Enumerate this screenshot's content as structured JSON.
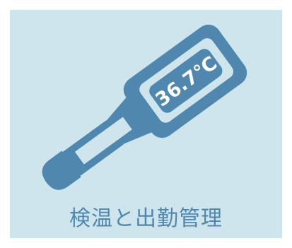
{
  "thermometer": {
    "reading": "36.7℃",
    "icon": "thermometer-icon"
  },
  "caption": {
    "title": "検温と出勤管理"
  },
  "colors": {
    "background": "#cfe5ed",
    "accent": "#4f87ae"
  }
}
